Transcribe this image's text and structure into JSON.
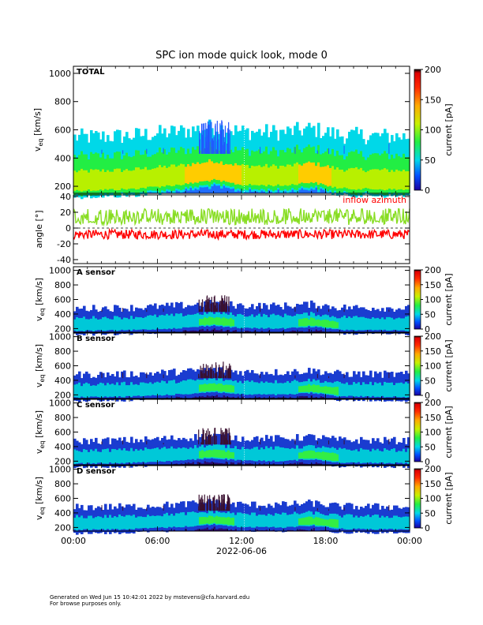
{
  "chart_data": {
    "type": "heatmap",
    "title": "SPC ion mode quick look, mode 0",
    "x_tick_labels": [
      "00:00",
      "06:00",
      "12:00",
      "18:00",
      "00:00"
    ],
    "x_date_label": "2022-06-06",
    "x_range_hours": [
      0,
      24
    ],
    "panels": [
      {
        "id": "total",
        "label": "TOTAL",
        "type": "heatmap",
        "ylabel": "v",
        "ylabel_sub": "eq",
        "ylabel_unit": "[km/s]",
        "ylim": [
          150,
          1050
        ],
        "yticks": [
          200,
          400,
          600,
          800,
          1000
        ],
        "colorbar": {
          "label": "current [pA]",
          "range": [
            0,
            200
          ],
          "ticks": [
            0,
            50,
            100,
            150,
            200
          ],
          "colormap": "rainbow"
        },
        "grid_top_kms": 430,
        "core_speed_kms": [
          [
            0,
            215
          ],
          [
            4,
            225
          ],
          [
            8,
            260
          ],
          [
            10,
            290
          ],
          [
            12,
            255
          ],
          [
            15,
            250
          ],
          [
            17,
            275
          ],
          [
            19,
            230
          ],
          [
            24,
            220
          ]
        ]
      },
      {
        "id": "angle",
        "type": "line",
        "ylabel": "angle [°]",
        "ylim": [
          -45,
          42
        ],
        "yticks": [
          -40,
          -20,
          0,
          20,
          40
        ],
        "series": [
          {
            "name": "inflow azimuth",
            "color": "#ff0000",
            "mean_deg": -8
          },
          {
            "name": "",
            "color": "#88dd22",
            "mean_deg": 16
          }
        ]
      },
      {
        "id": "A",
        "label": "A sensor",
        "type": "heatmap",
        "ylabel": "v",
        "ylabel_sub": "eq",
        "ylabel_unit": "[km/s]",
        "ylim": [
          150,
          1050
        ],
        "yticks": [
          200,
          400,
          600,
          800,
          1000
        ],
        "colorbar": {
          "label": "current [pA]",
          "range": [
            0,
            200
          ],
          "ticks": [
            0,
            50,
            100,
            150,
            200
          ],
          "colormap": "rainbow"
        }
      },
      {
        "id": "B",
        "label": "B sensor",
        "type": "heatmap",
        "ylabel": "v",
        "ylabel_sub": "eq",
        "ylabel_unit": "[km/s]",
        "ylim": [
          150,
          1050
        ],
        "yticks": [
          200,
          400,
          600,
          800,
          1000
        ],
        "colorbar": {
          "label": "current [pA]",
          "range": [
            0,
            200
          ],
          "ticks": [
            0,
            50,
            100,
            150,
            200
          ],
          "colormap": "rainbow"
        }
      },
      {
        "id": "C",
        "label": "C sensor",
        "type": "heatmap",
        "ylabel": "v",
        "ylabel_sub": "eq",
        "ylabel_unit": "[km/s]",
        "ylim": [
          150,
          1050
        ],
        "yticks": [
          200,
          400,
          600,
          800,
          1000
        ],
        "colorbar": {
          "label": "current [pA]",
          "range": [
            0,
            200
          ],
          "ticks": [
            0,
            50,
            100,
            150,
            200
          ],
          "colormap": "rainbow"
        }
      },
      {
        "id": "D",
        "label": "D sensor",
        "type": "heatmap",
        "ylabel": "v",
        "ylabel_sub": "eq",
        "ylabel_unit": "[km/s]",
        "ylim": [
          150,
          1050
        ],
        "yticks": [
          200,
          400,
          600,
          800,
          1000
        ],
        "colorbar": {
          "label": "current [pA]",
          "range": [
            0,
            200
          ],
          "ticks": [
            0,
            50,
            100,
            150,
            200
          ],
          "colormap": "rainbow"
        }
      }
    ]
  },
  "footer": {
    "line1": "Generated on Wed Jun 15 10:42:01 2022 by mstevens@cfa.harvard.edu",
    "line2": "For browse purposes only."
  }
}
